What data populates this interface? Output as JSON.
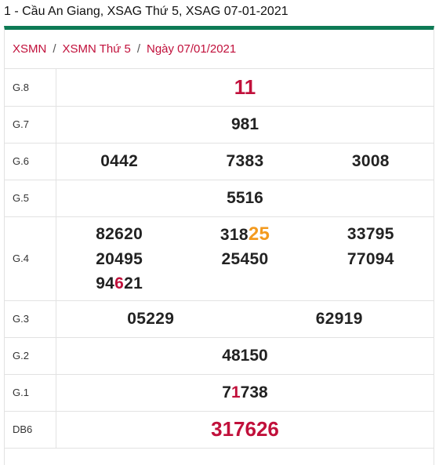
{
  "page": {
    "title": "1 - Cầu An Giang, XSAG Thứ 5, XSAG 07-01-2021"
  },
  "breadcrumb": {
    "items": [
      "XSMN",
      "XSMN Thứ 5",
      "Ngày 07/01/2021"
    ],
    "separator": "/"
  },
  "colors": {
    "brand_green": "#0e7a55",
    "accent_red": "#c1103b",
    "accent_orange": "#f39a1e"
  },
  "results": {
    "g8": {
      "label": "G.8",
      "value": "11"
    },
    "g7": {
      "label": "G.7",
      "value": "981"
    },
    "g6": {
      "label": "G.6",
      "values": [
        "0442",
        "7383",
        "3008"
      ]
    },
    "g5": {
      "label": "G.5",
      "value": "5516"
    },
    "g4": {
      "label": "G.4",
      "v1": "82620",
      "v2_pre": "318",
      "v2_hl": "25",
      "v3": "33795",
      "v4": "20495",
      "v5": "25450",
      "v6": "77094",
      "v7_pre": "94",
      "v7_hl": "6",
      "v7_post": "21"
    },
    "g3": {
      "label": "G.3",
      "values": [
        "05229",
        "62919"
      ]
    },
    "g2": {
      "label": "G.2",
      "value": "48150"
    },
    "g1": {
      "label": "G.1",
      "pre": "7",
      "hl": "1",
      "post": "738"
    },
    "db": {
      "label": "DB6",
      "value": "317626"
    }
  }
}
